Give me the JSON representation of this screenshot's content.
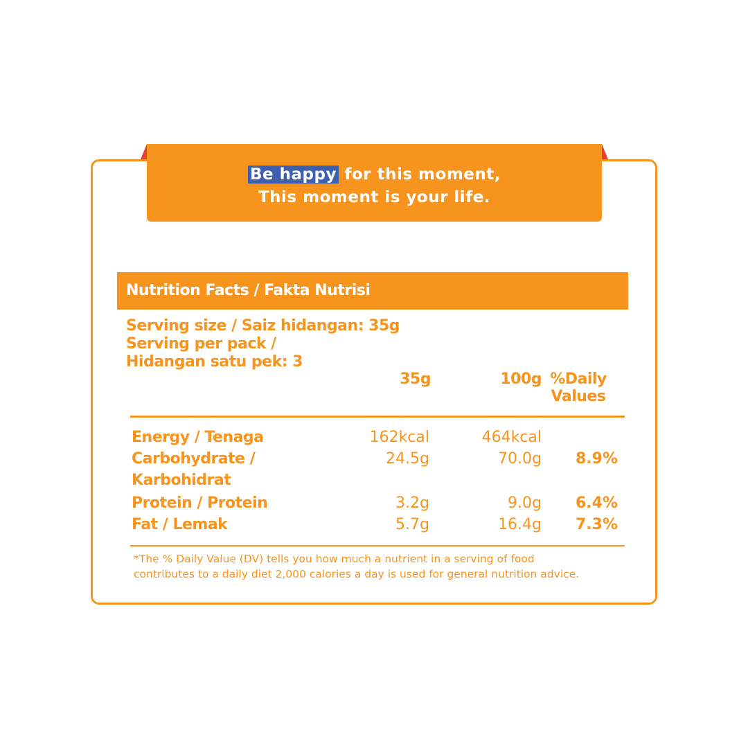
{
  "banner": {
    "highlight": "Be happy",
    "line1_rest": " for this moment,",
    "line2": "This moment is your life."
  },
  "header": {
    "title": "Nutrition Facts  / Fakta Nutrisi"
  },
  "serving": {
    "line1": "Serving size / Saiz hidangan: 35g",
    "line2": "Serving per pack /",
    "line3": "Hidangan satu pek: 3"
  },
  "columns": {
    "c1": "35g",
    "c2": "100g",
    "c3_line1": "%Daily",
    "c3_line2": "Values"
  },
  "rows": [
    {
      "name": "Energy / Tenaga",
      "v35": "162kcal",
      "v100": "464kcal",
      "dv": ""
    },
    {
      "name": "Carbohydrate /",
      "name2": "Karbohidrat",
      "v35": "24.5g",
      "v100": "70.0g",
      "dv": "8.9%"
    },
    {
      "name": "Protein / Protein",
      "v35": "3.2g",
      "v100": "9.0g",
      "dv": "6.4%"
    },
    {
      "name": "Fat / Lemak",
      "v35": "5.7g",
      "v100": "16.4g",
      "dv": "7.3%"
    }
  ],
  "footnote": {
    "line1": "*The % Daily Value (DV) tells you how much a nutrient in a serving of food",
    "line2": "contributes to a daily diet 2,000 calories a day is used for general nutrition advice."
  },
  "colors": {
    "accent": "#F7941D",
    "highlight": "#3D5FAE",
    "ribbon": "#E8412C"
  }
}
